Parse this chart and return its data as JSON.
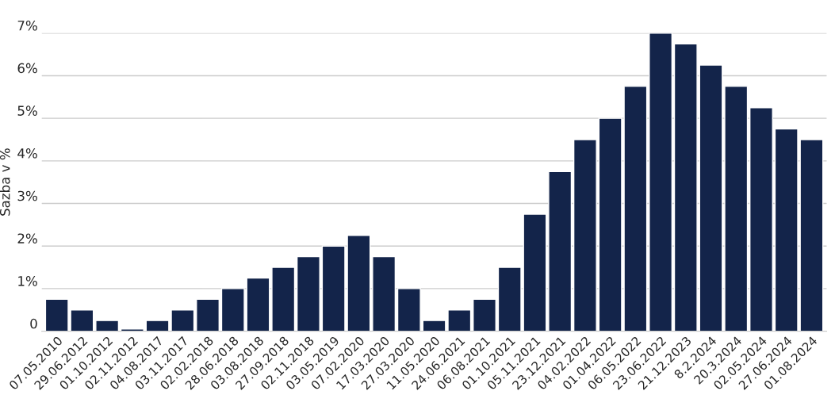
{
  "chart_data": {
    "type": "bar",
    "ylabel": "Sazba v %",
    "categories": [
      "07.05.2010",
      "29.06.2012",
      "01.10.2012",
      "02.11.2012",
      "04.08.2017",
      "03.11.2017",
      "02.02.2018",
      "28.06.2018",
      "03.08.2018",
      "27.09.2018",
      "02.11.2018",
      "03.05.2019",
      "07.02.2020",
      "17.03.2020",
      "27.03.2020",
      "11.05.2020",
      "24.06.2021",
      "06.08.2021",
      "01.10.2021",
      "05.11.2021",
      "23.12.2021",
      "04.02.2022",
      "01.04.2022",
      "06.05.2022",
      "23.06.2022",
      "21.12.2023",
      "8.2.2024",
      "20.3.2024",
      "02.05.2024",
      "27.06.2024",
      "01.08.2024"
    ],
    "values": [
      0.75,
      0.5,
      0.25,
      0.05,
      0.25,
      0.5,
      0.75,
      1.0,
      1.25,
      1.5,
      1.75,
      2.0,
      2.25,
      1.75,
      1.0,
      0.25,
      0.5,
      0.75,
      1.5,
      2.75,
      3.75,
      4.5,
      5.0,
      5.75,
      7.0,
      6.75,
      6.25,
      5.75,
      5.25,
      4.75,
      4.5
    ],
    "color": "#13244a",
    "ylim": [
      0,
      7
    ],
    "yticks": [
      {
        "value": 0,
        "label": "0"
      },
      {
        "value": 1,
        "label": "1%"
      },
      {
        "value": 2,
        "label": "2%"
      },
      {
        "value": 3,
        "label": "3%"
      },
      {
        "value": 4,
        "label": "4%"
      },
      {
        "value": 5,
        "label": "5%"
      },
      {
        "value": 6,
        "label": "6%"
      },
      {
        "value": 7,
        "label": "7%"
      }
    ],
    "grid": "y"
  }
}
